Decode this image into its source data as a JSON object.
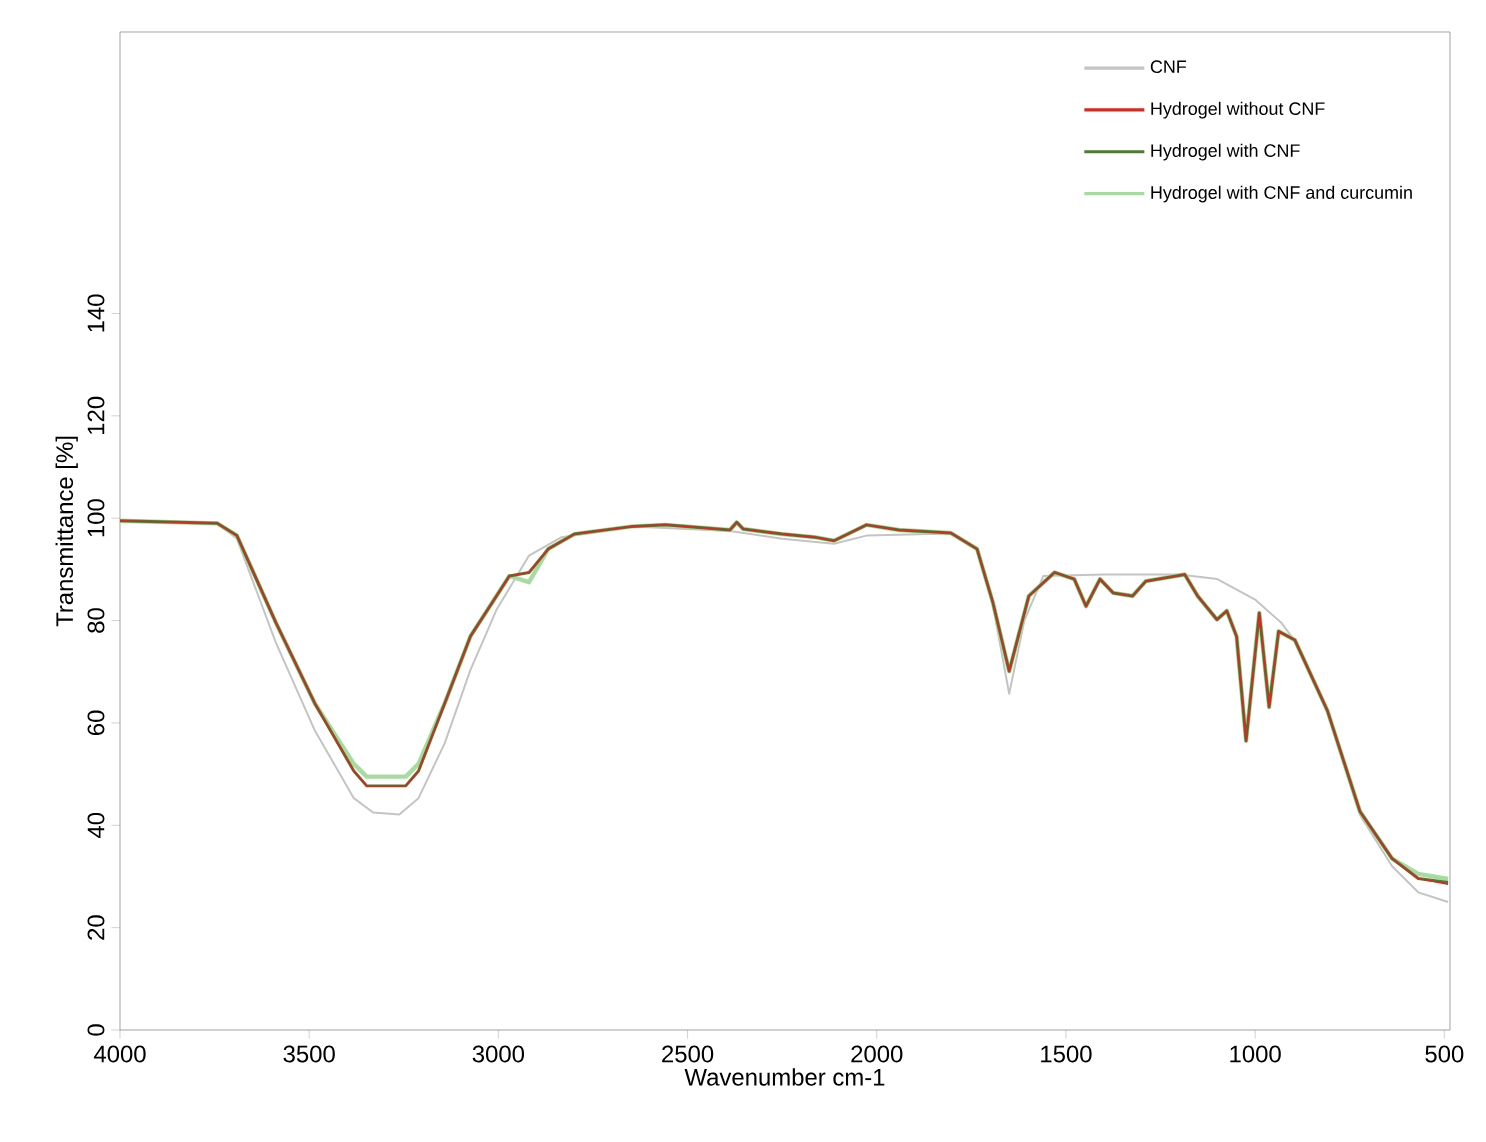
{
  "chart_data": {
    "type": "line",
    "xlabel": "Wavenumber cm-1",
    "ylabel": "Transmittance [%]",
    "xlim": [
      4000,
      485
    ],
    "ylim": [
      0,
      195
    ],
    "xticks": [
      4000,
      3500,
      3000,
      2500,
      2000,
      1500,
      1000,
      500
    ],
    "yticks": [
      0,
      20,
      40,
      60,
      80,
      100,
      120,
      140
    ],
    "legend": "top right",
    "marker": "none",
    "line_style": "solid",
    "x": [
      4000,
      3743,
      3691,
      3588,
      3485,
      3382,
      3348,
      3245,
      3211,
      3142,
      3074,
      3005,
      2971,
      2919,
      2868,
      2799,
      2645,
      2559,
      2388,
      2370,
      2353,
      2250,
      2164,
      2113,
      2027,
      1941,
      1804,
      1735,
      1693,
      1650,
      1598,
      1530,
      1478,
      1447,
      1410,
      1375,
      1324,
      1289,
      1186,
      1152,
      1101,
      1075,
      1049,
      1024,
      989,
      963,
      938,
      895,
      809,
      723,
      638,
      569,
      490
    ],
    "series": [
      {
        "name": "CNF",
        "color": "#c4c4c4",
        "x": [
          4000,
          3743,
          3691,
          3588,
          3485,
          3382,
          3331,
          3262,
          3211,
          3142,
          3074,
          3005,
          2919,
          2833,
          2645,
          2388,
          2250,
          2113,
          2027,
          1804,
          1735,
          1693,
          1650,
          1610,
          1560,
          1400,
          1200,
          1100,
          1000,
          930,
          895,
          809,
          723,
          638,
          569,
          490
        ],
        "values": [
          99.5,
          99,
          96,
          75.7,
          58.5,
          45.3,
          42.5,
          42.1,
          45.3,
          56,
          70.3,
          82.1,
          92.7,
          96.3,
          98.4,
          97.5,
          96,
          95,
          96.6,
          97,
          94,
          83,
          65.7,
          80,
          88.7,
          89,
          89,
          88.1,
          84.1,
          79.5,
          76,
          62,
          42,
          32,
          26.9,
          25
        ]
      },
      {
        "name": "Hydrogel without CNF",
        "color": "#d42a20",
        "values": [
          99.5,
          99,
          96.6,
          79.6,
          63.8,
          50.6,
          47.7,
          47.7,
          50.6,
          63.8,
          76.9,
          84.8,
          88.7,
          89.4,
          94,
          96.9,
          98.4,
          98.7,
          97.7,
          99.2,
          97.9,
          96.9,
          96.3,
          95.6,
          98.7,
          97.7,
          97.1,
          94,
          83.5,
          70.1,
          84.8,
          89.4,
          88.1,
          82.8,
          88.1,
          85.4,
          84.8,
          87.7,
          89,
          84.8,
          80.2,
          81.9,
          76.9,
          56.5,
          81.5,
          63.1,
          77.9,
          76.2,
          62.4,
          42.7,
          33.5,
          29.6,
          28.5
        ]
      },
      {
        "name": "Hydrogel with CNF",
        "color": "#4e7a34",
        "values": [
          99.5,
          99,
          96.6,
          79.6,
          63.8,
          50.6,
          47.7,
          47.7,
          50.6,
          63.8,
          76.9,
          84.8,
          88.7,
          89.4,
          94,
          96.9,
          98.4,
          98.7,
          97.7,
          99.2,
          97.9,
          96.9,
          96.3,
          95.6,
          98.7,
          97.7,
          97.1,
          94,
          83.5,
          70.1,
          84.8,
          89.4,
          88.1,
          82.8,
          88.1,
          85.4,
          84.8,
          87.7,
          89,
          84.8,
          80.2,
          81.9,
          76.9,
          56.5,
          81.5,
          63.1,
          77.9,
          76.2,
          62.4,
          42.7,
          33.5,
          29.6,
          28.8
        ]
      },
      {
        "name": "Hydrogel with CNF and curcumin",
        "color": "#a6dca0",
        "values": [
          99.5,
          99,
          96.6,
          79.6,
          63.8,
          52,
          49.5,
          49.5,
          52,
          63.8,
          76.9,
          84.8,
          88.7,
          87.5,
          94,
          96.9,
          98.4,
          98.7,
          97.7,
          99.2,
          97.9,
          96.9,
          96.3,
          95.6,
          98.7,
          97.7,
          97.1,
          94,
          83.5,
          70.1,
          84.8,
          89.4,
          88.1,
          82.8,
          88.1,
          85.4,
          84.8,
          87.7,
          89,
          84.8,
          80.2,
          81.9,
          76.9,
          56.5,
          81.5,
          63.1,
          77.9,
          76.2,
          62.4,
          42.7,
          33.5,
          30.5,
          29.5
        ]
      }
    ]
  }
}
